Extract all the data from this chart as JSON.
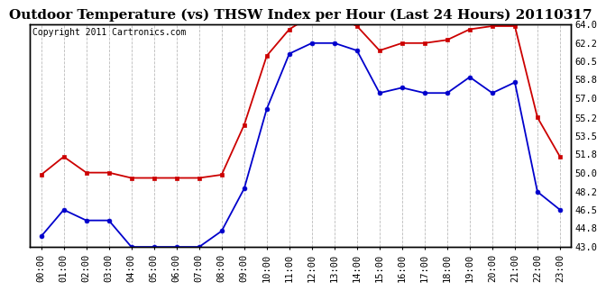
{
  "title": "Outdoor Temperature (vs) THSW Index per Hour (Last 24 Hours) 20110317",
  "copyright": "Copyright 2011 Cartronics.com",
  "x_labels": [
    "00:00",
    "01:00",
    "02:00",
    "03:00",
    "04:00",
    "05:00",
    "06:00",
    "07:00",
    "08:00",
    "09:00",
    "10:00",
    "11:00",
    "12:00",
    "13:00",
    "14:00",
    "15:00",
    "16:00",
    "17:00",
    "18:00",
    "19:00",
    "20:00",
    "21:00",
    "22:00",
    "23:00"
  ],
  "temp_data": [
    44.0,
    46.5,
    45.5,
    45.5,
    43.0,
    43.0,
    43.0,
    43.0,
    44.5,
    48.5,
    56.0,
    61.2,
    62.2,
    62.2,
    61.5,
    57.5,
    58.0,
    57.5,
    57.5,
    59.0,
    57.5,
    58.5,
    48.2,
    46.5
  ],
  "thsw_data": [
    49.8,
    51.5,
    50.0,
    50.0,
    49.5,
    49.5,
    49.5,
    49.5,
    49.8,
    54.5,
    61.0,
    63.5,
    64.8,
    64.8,
    63.8,
    61.5,
    62.2,
    62.2,
    62.5,
    63.5,
    63.8,
    63.8,
    55.2,
    51.5
  ],
  "temp_color": "#0000cc",
  "thsw_color": "#cc0000",
  "ylim": [
    43.0,
    64.0
  ],
  "yticks_right": [
    64.0,
    62.2,
    60.5,
    58.8,
    57.0,
    55.2,
    53.5,
    51.8,
    50.0,
    48.2,
    46.5,
    44.8,
    43.0
  ],
  "bg_color": "#ffffff",
  "plot_bg": "#ffffff",
  "grid_color": "#bbbbbb",
  "title_fontsize": 11,
  "copyright_fontsize": 7,
  "tick_fontsize": 7.5,
  "marker_size": 3.5
}
